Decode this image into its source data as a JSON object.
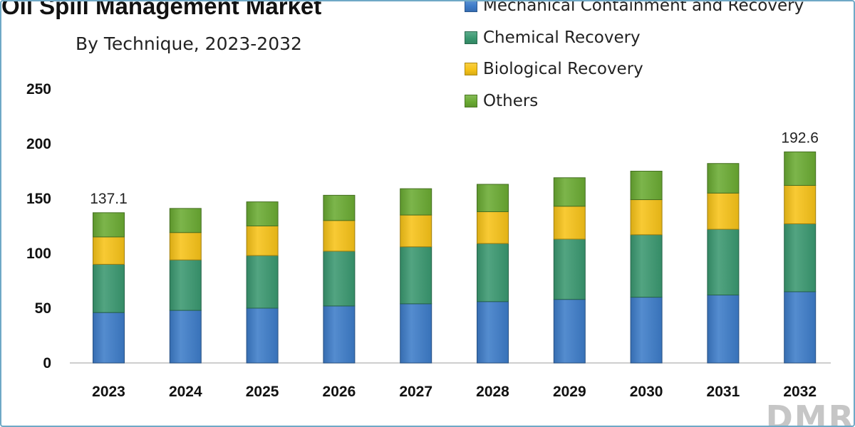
{
  "chart_data": {
    "type": "bar",
    "stacked": true,
    "title": "Oil Spill Management Market",
    "subtitle": "By Technique, 2023-2032",
    "xlabel": "",
    "ylabel": "",
    "ylim": [
      0,
      250
    ],
    "yticks": [
      0,
      50,
      100,
      150,
      200,
      250
    ],
    "grid": false,
    "legend_position": "top-right",
    "categories": [
      "2023",
      "2024",
      "2025",
      "2026",
      "2027",
      "2028",
      "2029",
      "2030",
      "2031",
      "2032"
    ],
    "series": [
      {
        "name": "Mechanical Containment and Recovery",
        "color": "#3d7cc9",
        "values": [
          46,
          48,
          50,
          52,
          54,
          56,
          58,
          60,
          62,
          65
        ]
      },
      {
        "name": "Chemical Recovery",
        "color": "#3a9870",
        "values": [
          44,
          46,
          48,
          50,
          52,
          53,
          55,
          57,
          60,
          62
        ]
      },
      {
        "name": "Biological Recovery",
        "color": "#f7c318",
        "values": [
          25,
          25,
          27,
          28,
          29,
          29,
          30,
          32,
          33,
          35
        ]
      },
      {
        "name": "Others",
        "color": "#6aab32",
        "values": [
          22.1,
          22,
          22,
          23,
          24,
          25,
          26,
          26,
          27,
          30.6
        ]
      }
    ],
    "data_labels": [
      {
        "category": "2023",
        "text": "137.1"
      },
      {
        "category": "2032",
        "text": "192.6"
      }
    ]
  },
  "logo_text": "DMR"
}
